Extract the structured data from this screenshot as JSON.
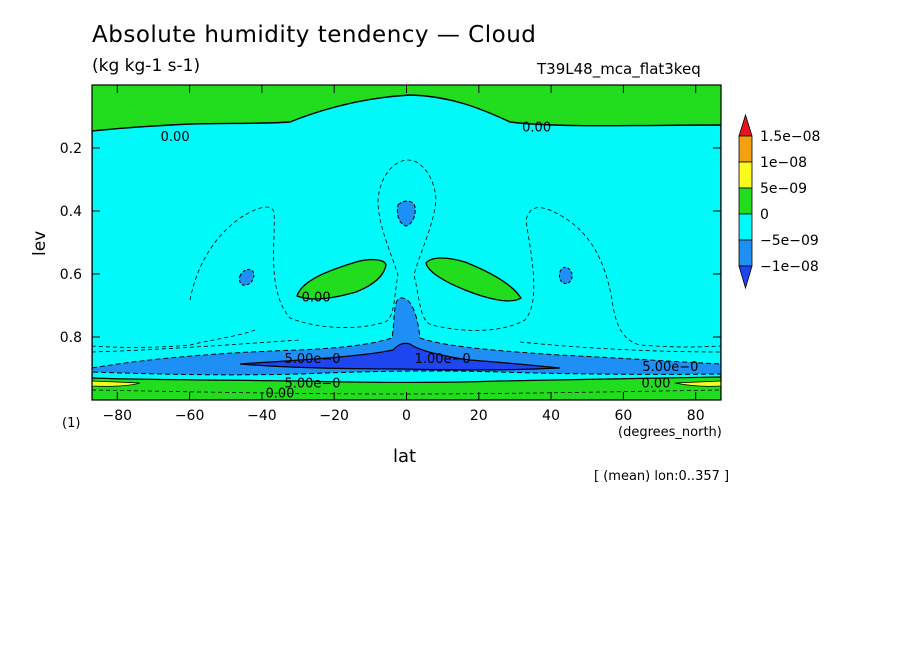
{
  "chart_data": {
    "type": "contour",
    "title": "Absolute humidity tendency — Cloud",
    "units": "(kg kg-1 s-1)",
    "experiment": "T39L48_mca_flat3keq",
    "xlabel": "lat",
    "xunit": "(degrees_north)",
    "ylabel": "lev",
    "factor": "(1)",
    "note": "[ (mean) lon:0..357 ]",
    "xlim": [
      -87,
      87
    ],
    "ylim": [
      1.0,
      0.0
    ],
    "xticks": [
      -80,
      -60,
      -40,
      -20,
      0,
      20,
      40,
      60,
      80
    ],
    "xticklabels": [
      "−80",
      "−60",
      "−40",
      "−20",
      "0",
      "20",
      "40",
      "60",
      "80"
    ],
    "yticks": [
      0.2,
      0.4,
      0.6,
      0.8
    ],
    "yticklabels": [
      "0.2",
      "0.4",
      "0.6",
      "0.8"
    ],
    "colorbar": {
      "levels": [
        "1.5e−08",
        "1e−08",
        "5e−09",
        "0",
        "−5e−09",
        "−1e−08"
      ],
      "colors": [
        "#e8131b",
        "#f5a00f",
        "#fafa1e",
        "#22dc1e",
        "#00fafa",
        "#1e8ff5",
        "#1e46f0"
      ]
    },
    "contour_labels": [
      {
        "text": "0.00",
        "lat": -64,
        "lev": 0.165
      },
      {
        "text": "0.00",
        "lat": 36,
        "lev": 0.135
      },
      {
        "text": "0.00",
        "lat": -25,
        "lev": 0.675
      },
      {
        "text": "5.00e−0",
        "lat": -26,
        "lev": 0.87
      },
      {
        "text": "1.00e−0",
        "lat": 10,
        "lev": 0.87
      },
      {
        "text": "5.00e−0",
        "lat": 73,
        "lev": 0.895
      },
      {
        "text": "5.00e−0",
        "lat": -26,
        "lev": 0.947
      },
      {
        "text": "0.00",
        "lat": 69,
        "lev": 0.947
      },
      {
        "text": "0.00",
        "lat": -35,
        "lev": 0.98
      }
    ]
  }
}
